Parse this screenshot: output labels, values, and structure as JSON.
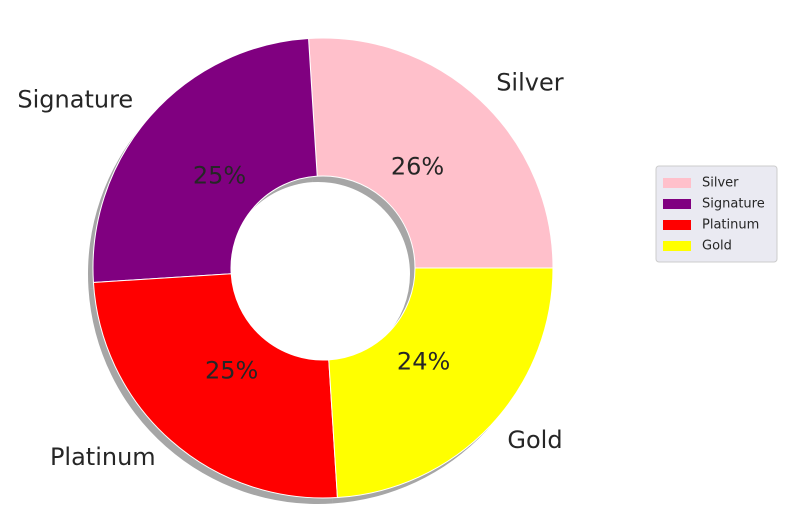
{
  "chart_data": {
    "type": "pie",
    "style": "donut",
    "categories": [
      "Silver",
      "Signature",
      "Platinum",
      "Gold"
    ],
    "values": [
      26,
      25,
      25,
      24
    ],
    "percent_labels": [
      "26%",
      "25%",
      "25%",
      "24%"
    ],
    "colors": {
      "Silver": "#ffc0cb",
      "Signature": "#800080",
      "Platinum": "#ff0000",
      "Gold": "#ffff00"
    },
    "shadow": true,
    "legend": {
      "placement": "right",
      "entries": [
        "Silver",
        "Signature",
        "Platinum",
        "Gold"
      ]
    }
  }
}
